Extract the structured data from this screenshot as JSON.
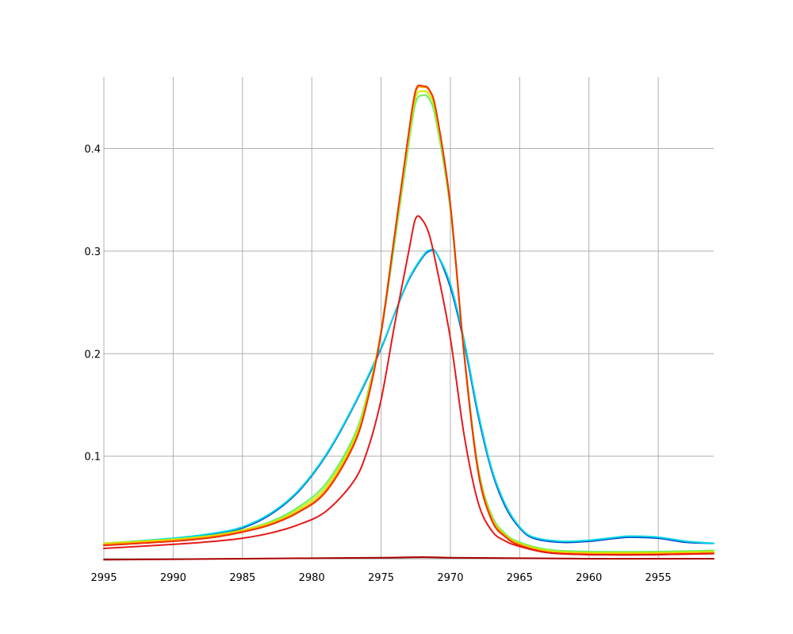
{
  "chart_data": {
    "type": "line",
    "title": "",
    "xlabel": "",
    "ylabel": "",
    "xlim": [
      2995,
      2951
    ],
    "ylim": [
      0,
      0.47
    ],
    "x_reversed": true,
    "grid": true,
    "x_ticks": [
      2995,
      2990,
      2985,
      2980,
      2975,
      2970,
      2965,
      2960,
      2955
    ],
    "x_tick_labels": [
      "2995",
      "2990",
      "2985",
      "2980",
      "2975",
      "2970",
      "2965",
      "2960",
      "2955"
    ],
    "y_ticks": [
      0.1,
      0.2,
      0.3,
      0.4
    ],
    "y_tick_labels": [
      "0.1",
      "0.2",
      "0.3",
      "0.4"
    ],
    "series": [
      {
        "color": "#0044cc",
        "x": [
          2995,
          2990,
          2987,
          2985,
          2983,
          2981,
          2979,
          2977,
          2975,
          2974,
          2973,
          2972,
          2971.5,
          2971,
          2970,
          2969,
          2968,
          2967,
          2966,
          2965,
          2964,
          2962,
          2960,
          2958,
          2957,
          2955,
          2953,
          2951
        ],
        "y": [
          0.014,
          0.019,
          0.024,
          0.03,
          0.043,
          0.065,
          0.1,
          0.148,
          0.205,
          0.24,
          0.272,
          0.294,
          0.3,
          0.298,
          0.265,
          0.21,
          0.14,
          0.085,
          0.05,
          0.03,
          0.02,
          0.016,
          0.017,
          0.02,
          0.021,
          0.02,
          0.016,
          0.015
        ]
      },
      {
        "color": "#00d8e6",
        "x": [
          2995,
          2990,
          2987,
          2985,
          2983,
          2981,
          2979,
          2977,
          2975,
          2974,
          2973,
          2972,
          2971.5,
          2971,
          2970,
          2969,
          2968,
          2967,
          2966,
          2965,
          2964,
          2962,
          2960,
          2958,
          2957,
          2955,
          2953,
          2951
        ],
        "y": [
          0.015,
          0.02,
          0.025,
          0.031,
          0.044,
          0.066,
          0.101,
          0.149,
          0.206,
          0.24,
          0.273,
          0.295,
          0.301,
          0.298,
          0.268,
          0.213,
          0.143,
          0.087,
          0.052,
          0.031,
          0.021,
          0.017,
          0.018,
          0.021,
          0.022,
          0.021,
          0.017,
          0.015
        ]
      },
      {
        "color": "#66ee66",
        "x": [
          2995,
          2990,
          2987,
          2985,
          2983,
          2981,
          2979,
          2977,
          2976,
          2975,
          2974,
          2973,
          2972.5,
          2972,
          2971.5,
          2971,
          2970,
          2969,
          2968,
          2967,
          2966,
          2965,
          2963,
          2960,
          2955,
          2951
        ],
        "y": [
          0.015,
          0.019,
          0.023,
          0.028,
          0.036,
          0.05,
          0.073,
          0.118,
          0.16,
          0.22,
          0.31,
          0.405,
          0.445,
          0.452,
          0.448,
          0.425,
          0.34,
          0.2,
          0.09,
          0.042,
          0.024,
          0.016,
          0.009,
          0.007,
          0.007,
          0.008
        ]
      },
      {
        "color": "#c8f000",
        "x": [
          2995,
          2990,
          2987,
          2985,
          2983,
          2981,
          2979,
          2977,
          2976,
          2975,
          2974,
          2973,
          2972.5,
          2972,
          2971.5,
          2971,
          2970,
          2969,
          2968,
          2967,
          2966,
          2965,
          2963,
          2960,
          2955,
          2951
        ],
        "y": [
          0.015,
          0.019,
          0.023,
          0.028,
          0.035,
          0.048,
          0.07,
          0.115,
          0.158,
          0.222,
          0.315,
          0.41,
          0.45,
          0.456,
          0.452,
          0.43,
          0.343,
          0.2,
          0.088,
          0.04,
          0.023,
          0.015,
          0.008,
          0.006,
          0.006,
          0.007
        ]
      },
      {
        "color": "#ffaa00",
        "x": [
          2995,
          2990,
          2987,
          2985,
          2983,
          2981,
          2979,
          2977,
          2976,
          2975,
          2974,
          2973,
          2972.5,
          2972,
          2971.5,
          2971,
          2970,
          2969,
          2968,
          2967,
          2966,
          2965,
          2963,
          2960,
          2955,
          2951
        ],
        "y": [
          0.014,
          0.018,
          0.022,
          0.027,
          0.034,
          0.046,
          0.067,
          0.112,
          0.155,
          0.222,
          0.318,
          0.414,
          0.455,
          0.46,
          0.456,
          0.434,
          0.345,
          0.2,
          0.087,
          0.039,
          0.022,
          0.014,
          0.007,
          0.005,
          0.005,
          0.006
        ]
      },
      {
        "color": "#ee3300",
        "x": [
          2995,
          2990,
          2987,
          2985,
          2983,
          2981,
          2979,
          2977,
          2976,
          2975,
          2974,
          2973,
          2972.5,
          2972,
          2971.5,
          2971,
          2970,
          2969,
          2968,
          2967,
          2966,
          2965,
          2963,
          2960,
          2955,
          2951
        ],
        "y": [
          0.013,
          0.017,
          0.021,
          0.026,
          0.033,
          0.045,
          0.065,
          0.11,
          0.153,
          0.22,
          0.318,
          0.416,
          0.457,
          0.461,
          0.457,
          0.435,
          0.345,
          0.198,
          0.085,
          0.037,
          0.021,
          0.013,
          0.006,
          0.004,
          0.004,
          0.005
        ]
      },
      {
        "color": "#e61919",
        "x": [
          2995,
          2990,
          2987,
          2985,
          2983,
          2981,
          2979,
          2977,
          2976,
          2975,
          2974,
          2973,
          2972.5,
          2972,
          2971.5,
          2971,
          2970,
          2969,
          2968,
          2967,
          2966,
          2965,
          2963,
          2960,
          2955,
          2951
        ],
        "y": [
          0.01,
          0.014,
          0.017,
          0.02,
          0.025,
          0.033,
          0.046,
          0.075,
          0.105,
          0.155,
          0.23,
          0.3,
          0.332,
          0.33,
          0.315,
          0.285,
          0.215,
          0.12,
          0.055,
          0.027,
          0.017,
          0.012,
          0.006,
          0.004,
          0.004,
          0.005
        ]
      },
      {
        "color": "#aa0000",
        "x": [
          2995,
          2985,
          2980,
          2975,
          2972,
          2970,
          2965,
          2960,
          2955,
          2951
        ],
        "y": [
          -0.001,
          0.0,
          0.0005,
          0.001,
          0.0015,
          0.001,
          0.0005,
          0.0,
          0.0,
          0.0
        ]
      }
    ]
  }
}
